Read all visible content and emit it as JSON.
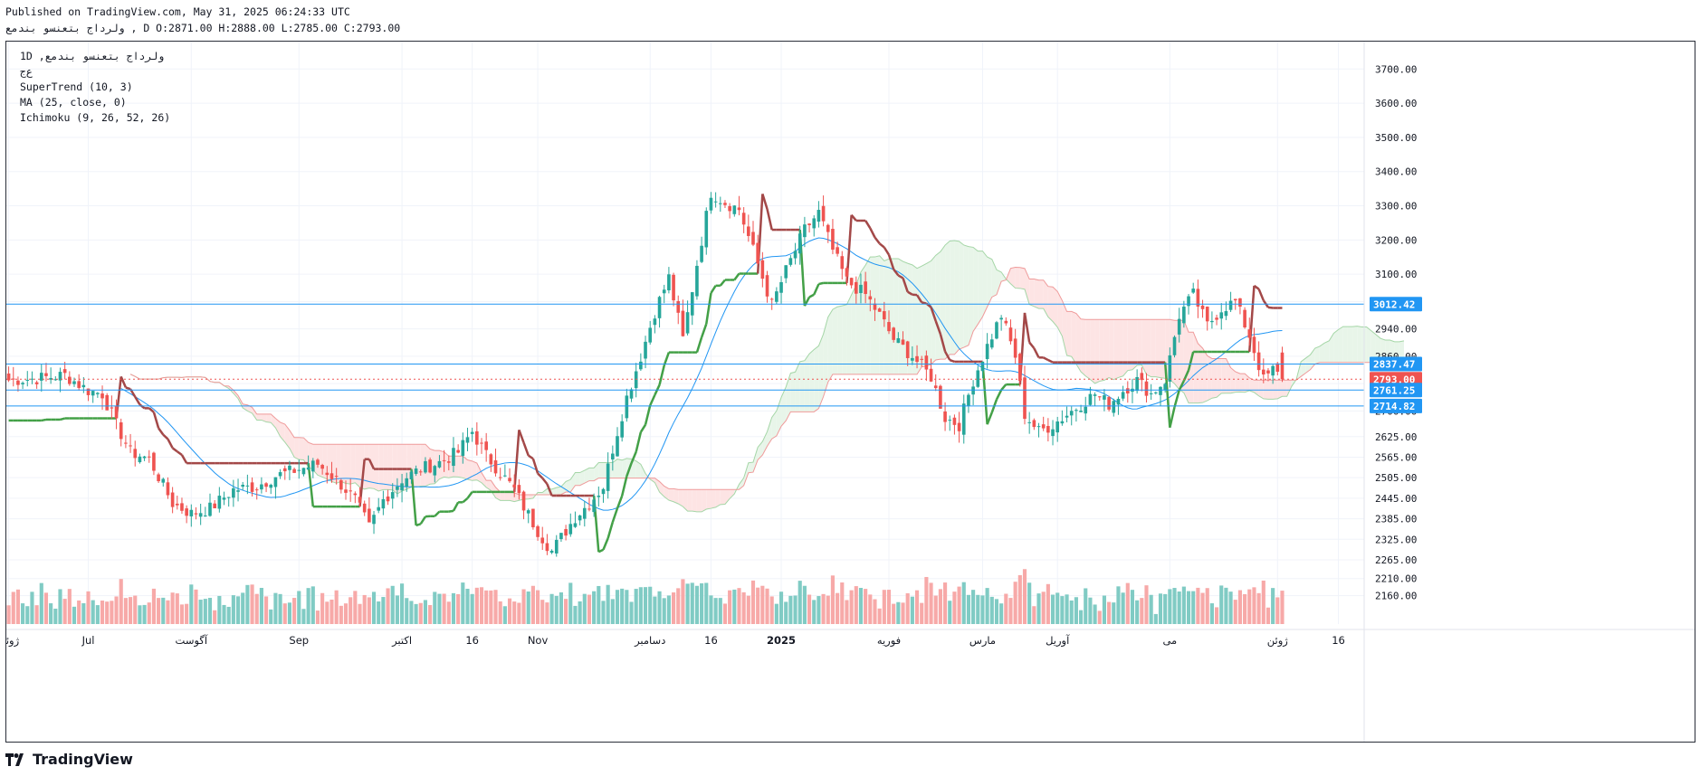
{
  "header": {
    "published": "Published on TradingView.com, May 31, 2025 06:24:33 UTC",
    "symbol_line": "ولرداج بتعنسو بندمع , D O:2871.00 H:2888.00 L:2785.00 C:2793.00"
  },
  "legend": {
    "title": "1D ,ولرداج بتعنسو بندمع",
    "subtitle": "ع‌ج",
    "indicators": [
      "SuperTrend (10, 3)",
      "MA (25, close, 0)",
      "Ichimoku (9, 26, 52, 26)"
    ]
  },
  "branding": {
    "logo_text": "TradingView"
  },
  "colors": {
    "up": "#26a69a",
    "down": "#ef5350",
    "supertrend_up": "#43a047",
    "supertrend_down": "#a34848",
    "ma": "#2196f3",
    "hline": "#2196f3",
    "kumo_bull": "#e8f5e9",
    "kumo_bear": "#fde4e4"
  },
  "chart_data": {
    "type": "candlestick",
    "ylim": [
      2130,
      3780
    ],
    "y_ticks": [
      2160,
      2210,
      2265,
      2325,
      2385,
      2445,
      2505,
      2565,
      2625,
      2700,
      2780,
      2860,
      2940,
      3020,
      3100,
      3200,
      3300,
      3400,
      3500,
      3600,
      3700
    ],
    "y_tick_labels": [
      "2160.00",
      "2210.00",
      "2265.00",
      "2325.00",
      "2385.00",
      "2445.00",
      "2505.00",
      "2565.00",
      "2625.00",
      "2700.00",
      "2780.00",
      "2860.00",
      "2940.00",
      "3020.00",
      "3100.00",
      "3200.00",
      "3300.00",
      "3400.00",
      "3500.00",
      "3600.00",
      "3700.00"
    ],
    "x_labels": [
      {
        "label": "ژوئن",
        "idx": 0
      },
      {
        "label": "Jul",
        "idx": 17
      },
      {
        "label": "آگوست",
        "idx": 39
      },
      {
        "label": "Sep",
        "idx": 62
      },
      {
        "label": "اکتبر",
        "idx": 84
      },
      {
        "label": "16",
        "idx": 99
      },
      {
        "label": "Nov",
        "idx": 113
      },
      {
        "label": "دسامبر",
        "idx": 137
      },
      {
        "label": "16",
        "idx": 150
      },
      {
        "label": "2025",
        "idx": 165
      },
      {
        "label": "فوریه",
        "idx": 188
      },
      {
        "label": "مارس",
        "idx": 208
      },
      {
        "label": "آوریل",
        "idx": 224
      },
      {
        "label": "می",
        "idx": 248
      },
      {
        "label": "ژوئن",
        "idx": 271
      },
      {
        "label": "16",
        "idx": 284
      }
    ],
    "price_lines": [
      {
        "value": 3012.42,
        "label": "3012.42",
        "style": "solid"
      },
      {
        "value": 2837.47,
        "label": "2837.47",
        "style": "solid"
      },
      {
        "value": 2793.0,
        "label": "2793.00",
        "style": "dotted",
        "current": true
      },
      {
        "value": 2761.25,
        "label": "2761.25",
        "style": "solid"
      },
      {
        "value": 2714.82,
        "label": "2714.82",
        "style": "solid"
      }
    ],
    "ohlc_summary": {
      "open": 2871.0,
      "high": 2888.0,
      "low": 2785.0,
      "close": 2793.0
    },
    "anchors": [
      [
        0,
        2790
      ],
      [
        6,
        2795
      ],
      [
        12,
        2805
      ],
      [
        17,
        2760
      ],
      [
        20,
        2750
      ],
      [
        23,
        2660
      ],
      [
        26,
        2580
      ],
      [
        30,
        2560
      ],
      [
        35,
        2430
      ],
      [
        39,
        2400
      ],
      [
        43,
        2415
      ],
      [
        48,
        2470
      ],
      [
        53,
        2480
      ],
      [
        57,
        2510
      ],
      [
        62,
        2530
      ],
      [
        66,
        2545
      ],
      [
        70,
        2500
      ],
      [
        74,
        2440
      ],
      [
        77,
        2360
      ],
      [
        80,
        2440
      ],
      [
        84,
        2500
      ],
      [
        88,
        2530
      ],
      [
        92,
        2550
      ],
      [
        96,
        2580
      ],
      [
        99,
        2640
      ],
      [
        102,
        2570
      ],
      [
        105,
        2520
      ],
      [
        108,
        2470
      ],
      [
        110,
        2420
      ],
      [
        113,
        2350
      ],
      [
        116,
        2290
      ],
      [
        118,
        2330
      ],
      [
        121,
        2390
      ],
      [
        124,
        2430
      ],
      [
        127,
        2480
      ],
      [
        129,
        2590
      ],
      [
        132,
        2740
      ],
      [
        135,
        2860
      ],
      [
        138,
        2990
      ],
      [
        141,
        3090
      ],
      [
        144,
        2910
      ],
      [
        147,
        3130
      ],
      [
        150,
        3340
      ],
      [
        153,
        3310
      ],
      [
        156,
        3290
      ],
      [
        160,
        3130
      ],
      [
        163,
        3010
      ],
      [
        166,
        3110
      ],
      [
        170,
        3230
      ],
      [
        173,
        3280
      ],
      [
        176,
        3170
      ],
      [
        179,
        3080
      ],
      [
        183,
        3040
      ],
      [
        186,
        2980
      ],
      [
        189,
        2910
      ],
      [
        193,
        2860
      ],
      [
        197,
        2800
      ],
      [
        200,
        2680
      ],
      [
        203,
        2660
      ],
      [
        206,
        2790
      ],
      [
        209,
        2890
      ],
      [
        212,
        2980
      ],
      [
        215,
        2860
      ],
      [
        217,
        2690
      ],
      [
        220,
        2640
      ],
      [
        223,
        2660
      ],
      [
        226,
        2690
      ],
      [
        229,
        2720
      ],
      [
        232,
        2750
      ],
      [
        235,
        2720
      ],
      [
        238,
        2760
      ],
      [
        241,
        2790
      ],
      [
        244,
        2750
      ],
      [
        247,
        2790
      ],
      [
        250,
        2980
      ],
      [
        253,
        3040
      ],
      [
        256,
        2950
      ],
      [
        259,
        3000
      ],
      [
        262,
        3020
      ],
      [
        265,
        2920
      ],
      [
        268,
        2790
      ],
      [
        270,
        2820
      ],
      [
        272,
        2793
      ]
    ]
  }
}
